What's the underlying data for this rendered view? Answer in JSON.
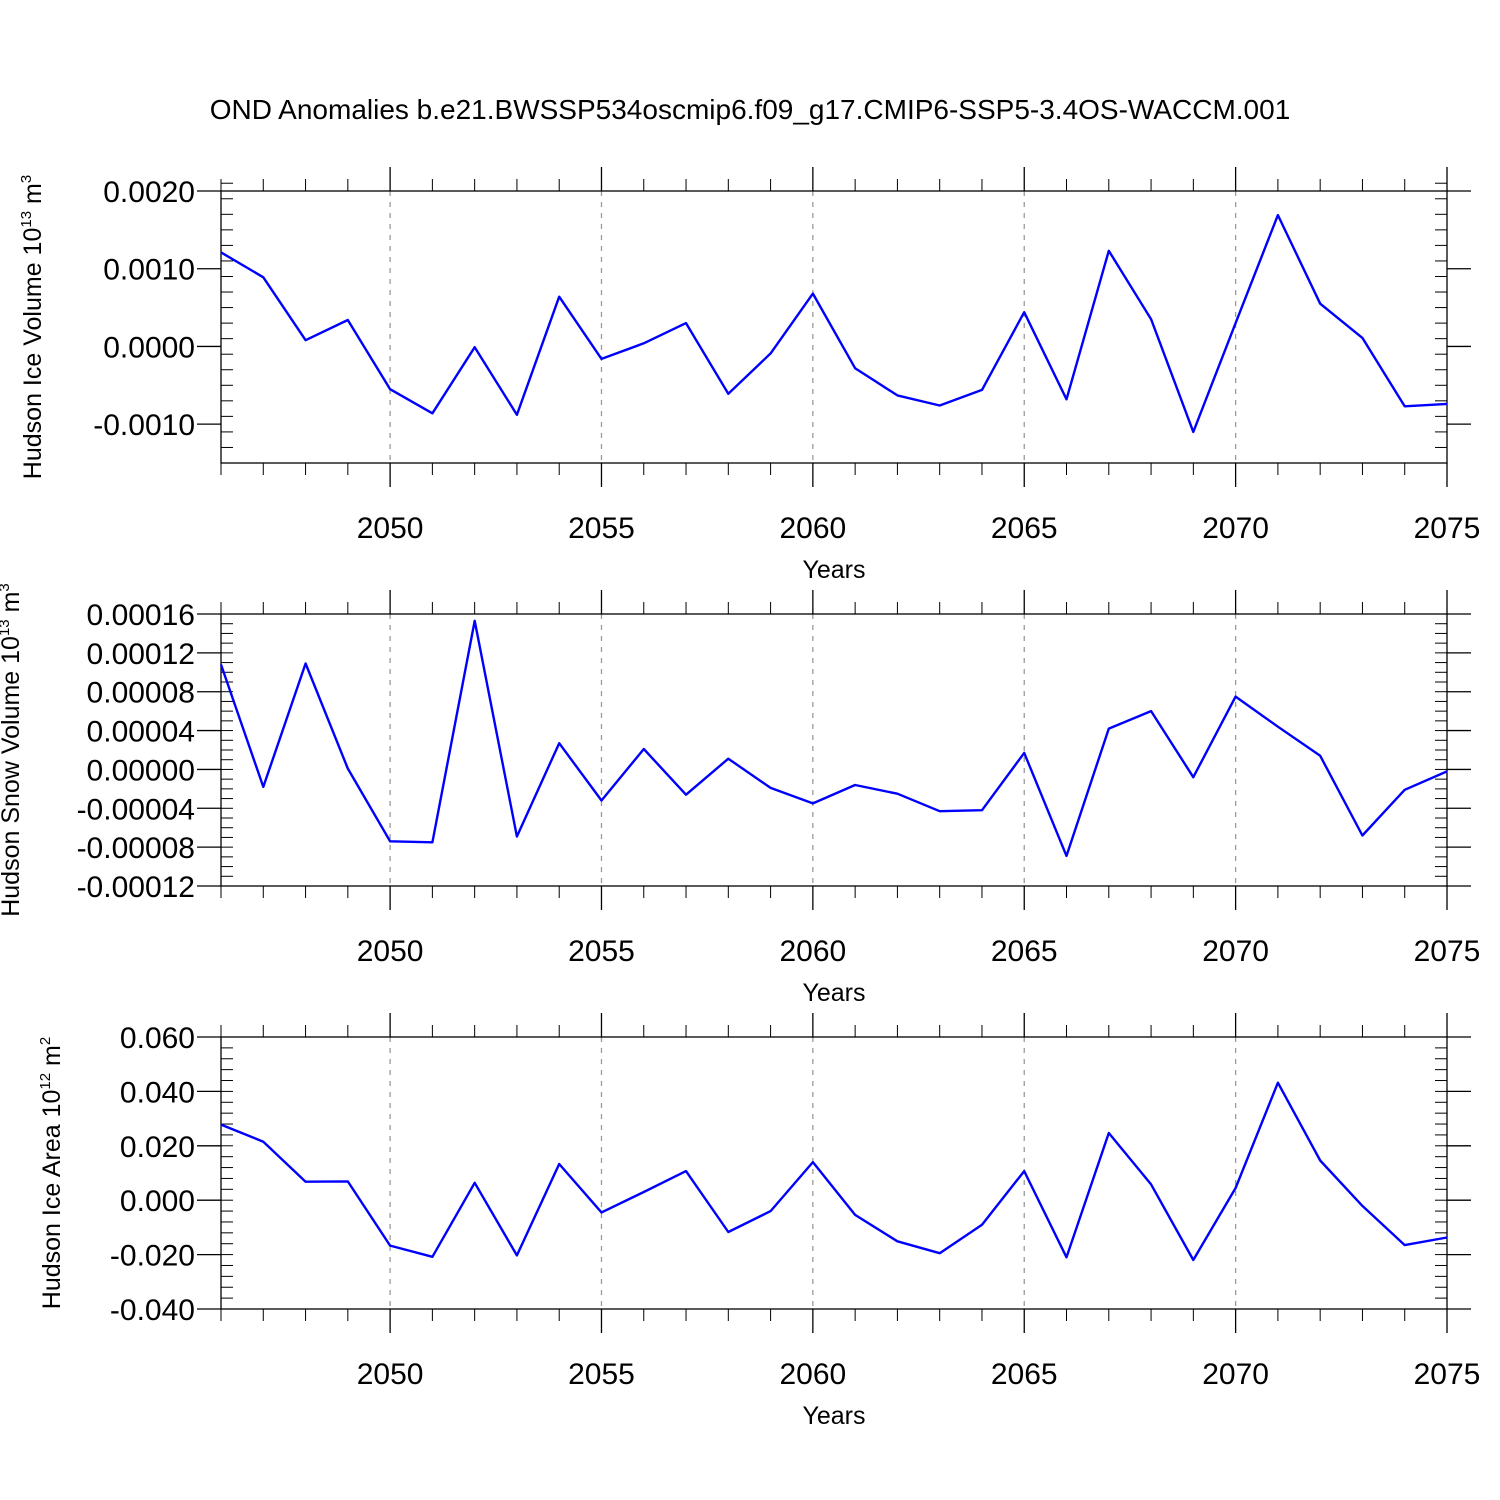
{
  "figure": {
    "title": "OND Anomalies b.e21.BWSSP534oscmip6.f09_g17.CMIP6-SSP5-3.4OS-WACCM.001"
  },
  "colors": {
    "line": "#0000ff",
    "grid": "#9a9a9a"
  },
  "chart_data": [
    {
      "type": "line",
      "ylabel": {
        "text": "Hudson Ice Volume 10",
        "exponent": "13",
        "unit": " m",
        "unit_exponent": "3"
      },
      "xlabel": "Years",
      "xlim": [
        2046,
        2075
      ],
      "ylim": [
        -0.0015,
        0.002
      ],
      "yticks": [
        -0.001,
        0.0,
        0.001,
        0.002
      ],
      "ytick_labels": [
        "-0.0010",
        "0.0000",
        "0.0010",
        "0.0020"
      ],
      "y_minor_step": 0.0002,
      "xticks": [
        2050,
        2055,
        2060,
        2065,
        2070,
        2075
      ],
      "xtick_labels": [
        "2050",
        "2055",
        "2060",
        "2065",
        "2070",
        "2075"
      ],
      "grid_x": [
        2050,
        2055,
        2060,
        2065,
        2070
      ],
      "series": [
        {
          "name": "Hudson Ice Volume",
          "x": [
            2046,
            2047,
            2048,
            2049,
            2050,
            2051,
            2052,
            2053,
            2054,
            2055,
            2056,
            2057,
            2058,
            2059,
            2060,
            2061,
            2062,
            2063,
            2064,
            2065,
            2066,
            2067,
            2068,
            2069,
            2070,
            2071,
            2072,
            2073,
            2074,
            2075
          ],
          "values": [
            0.00121,
            0.00089,
            8e-05,
            0.00034,
            -0.00055,
            -0.00086,
            -1e-05,
            -0.00088,
            0.00064,
            -0.00016,
            4e-05,
            0.0003,
            -0.00061,
            -9e-05,
            0.00068,
            -0.00028,
            -0.00063,
            -0.00076,
            -0.00056,
            0.00044,
            -0.00068,
            0.00123,
            0.00035,
            -0.0011,
            0.0003,
            0.00169,
            0.00055,
            0.00011,
            -0.00077,
            -0.00074
          ]
        }
      ]
    },
    {
      "type": "line",
      "ylabel": {
        "text": "Hudson Snow Volume 10",
        "exponent": "13",
        "unit": " m",
        "unit_exponent": "3"
      },
      "xlabel": "Years",
      "xlim": [
        2046,
        2075
      ],
      "ylim": [
        -0.00012,
        0.00016
      ],
      "yticks": [
        -0.00012,
        -8e-05,
        -4e-05,
        0.0,
        4e-05,
        8e-05,
        0.00012,
        0.00016
      ],
      "ytick_labels": [
        "-0.00012",
        "-0.00008",
        "-0.00004",
        "0.00000",
        "0.00004",
        "0.00008",
        "0.00012",
        "0.00016"
      ],
      "y_minor_step": 1e-05,
      "xticks": [
        2050,
        2055,
        2060,
        2065,
        2070,
        2075
      ],
      "xtick_labels": [
        "2050",
        "2055",
        "2060",
        "2065",
        "2070",
        "2075"
      ],
      "grid_x": [
        2050,
        2055,
        2060,
        2065,
        2070
      ],
      "series": [
        {
          "name": "Hudson Snow Volume",
          "x": [
            2046,
            2047,
            2048,
            2049,
            2050,
            2051,
            2052,
            2053,
            2054,
            2055,
            2056,
            2057,
            2058,
            2059,
            2060,
            2061,
            2062,
            2063,
            2064,
            2065,
            2066,
            2067,
            2068,
            2069,
            2070,
            2071,
            2072,
            2073,
            2074,
            2075
          ],
          "values": [
            0.000108,
            -1.8e-05,
            0.000109,
            1e-06,
            -7.4e-05,
            -7.5e-05,
            0.000153,
            -6.9e-05,
            2.7e-05,
            -3.2e-05,
            2.1e-05,
            -2.6e-05,
            1.1e-05,
            -1.9e-05,
            -3.5e-05,
            -1.6e-05,
            -2.5e-05,
            -4.3e-05,
            -4.2e-05,
            1.7e-05,
            -8.9e-05,
            4.2e-05,
            6e-05,
            -8e-06,
            7.5e-05,
            4.4e-05,
            1.4e-05,
            -6.8e-05,
            -2.1e-05,
            -2e-06
          ]
        }
      ]
    },
    {
      "type": "line",
      "ylabel": {
        "text": "Hudson Ice Area 10",
        "exponent": "12",
        "unit": " m",
        "unit_exponent": "2"
      },
      "xlabel": "Years",
      "xlim": [
        2046,
        2075
      ],
      "ylim": [
        -0.04,
        0.06
      ],
      "yticks": [
        -0.04,
        -0.02,
        0.0,
        0.02,
        0.04,
        0.06
      ],
      "ytick_labels": [
        "-0.040",
        "-0.020",
        "0.000",
        "0.020",
        "0.040",
        "0.060"
      ],
      "y_minor_step": 0.004,
      "xticks": [
        2050,
        2055,
        2060,
        2065,
        2070,
        2075
      ],
      "xtick_labels": [
        "2050",
        "2055",
        "2060",
        "2065",
        "2070",
        "2075"
      ],
      "grid_x": [
        2050,
        2055,
        2060,
        2065,
        2070
      ],
      "series": [
        {
          "name": "Hudson Ice Area",
          "x": [
            2046,
            2047,
            2048,
            2049,
            2050,
            2051,
            2052,
            2053,
            2054,
            2055,
            2056,
            2057,
            2058,
            2059,
            2060,
            2061,
            2062,
            2063,
            2064,
            2065,
            2066,
            2067,
            2068,
            2069,
            2070,
            2071,
            2072,
            2073,
            2074,
            2075
          ],
          "values": [
            0.0278,
            0.0215,
            0.0068,
            0.0069,
            -0.0167,
            -0.0208,
            0.0064,
            -0.0203,
            0.0133,
            -0.0045,
            0.003,
            0.0107,
            -0.0117,
            -0.004,
            0.014,
            -0.0054,
            -0.0151,
            -0.0195,
            -0.009,
            0.0107,
            -0.021,
            0.0247,
            0.0058,
            -0.022,
            0.0045,
            0.0432,
            0.0146,
            -0.0021,
            -0.0165,
            -0.0137
          ]
        }
      ]
    }
  ]
}
